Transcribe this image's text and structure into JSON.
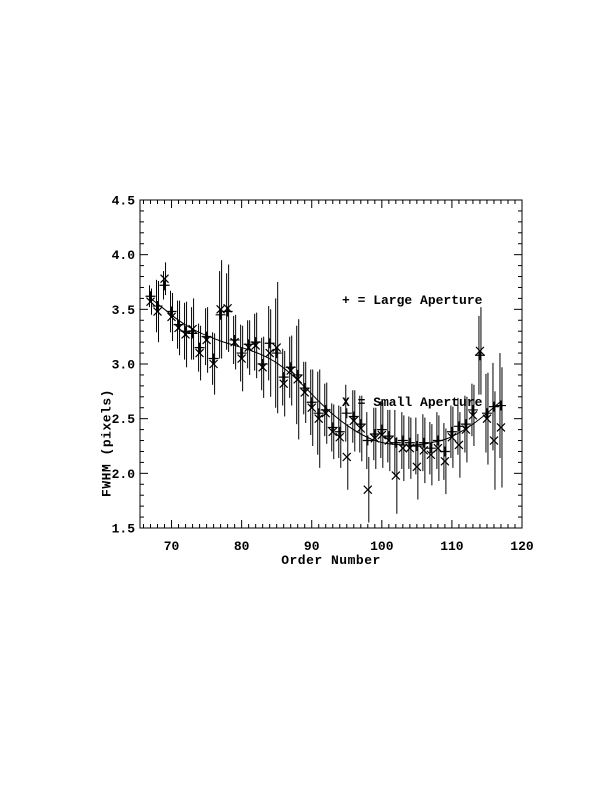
{
  "colors": {
    "ink": "#000000",
    "paper": "#ffffff"
  },
  "chart_data": {
    "type": "scatter",
    "title": "",
    "xlabel": "Order Number",
    "ylabel": "FWHM (pixels)",
    "xlim": [
      65.5,
      120
    ],
    "ylim": [
      1.5,
      4.5
    ],
    "x_major_ticks": [
      70,
      80,
      90,
      100,
      110,
      120
    ],
    "x_minor_step": 1,
    "y_major_ticks": [
      1.5,
      2.0,
      2.5,
      3.0,
      3.5,
      4.0,
      4.5
    ],
    "y_minor_step": 0.1,
    "grid": false,
    "legend_position": "inside-upper-right",
    "legend": [
      "+ = Large Aperture",
      "X = Small Aperture"
    ],
    "orders": [
      67,
      68,
      69,
      70,
      71,
      72,
      73,
      74,
      75,
      76,
      77,
      78,
      79,
      80,
      81,
      82,
      83,
      84,
      85,
      86,
      87,
      88,
      89,
      90,
      91,
      92,
      93,
      94,
      95,
      96,
      97,
      98,
      99,
      100,
      101,
      102,
      103,
      104,
      105,
      106,
      107,
      108,
      109,
      110,
      111,
      112,
      113,
      114,
      115,
      116,
      117
    ],
    "series": [
      {
        "name": "Large Aperture",
        "marker": "plus",
        "values": [
          3.62,
          3.53,
          3.72,
          3.48,
          3.36,
          3.3,
          3.28,
          3.15,
          3.25,
          3.05,
          3.45,
          3.48,
          3.22,
          3.1,
          3.18,
          3.2,
          3.0,
          3.19,
          3.1,
          2.88,
          2.97,
          2.9,
          2.78,
          2.65,
          2.55,
          2.58,
          2.42,
          2.38,
          2.55,
          2.52,
          2.45,
          2.3,
          2.36,
          2.4,
          2.34,
          2.28,
          2.3,
          2.28,
          2.25,
          2.28,
          2.23,
          2.3,
          2.2,
          2.38,
          2.43,
          2.45,
          2.58,
          3.08,
          2.55,
          2.61,
          2.62
        ],
        "errors": [
          0.1,
          0.24,
          0.13,
          0.19,
          0.22,
          0.26,
          0.24,
          0.22,
          0.26,
          0.24,
          0.4,
          0.35,
          0.22,
          0.26,
          0.22,
          0.26,
          0.24,
          0.34,
          0.5,
          0.26,
          0.28,
          0.45,
          0.24,
          0.3,
          0.38,
          0.24,
          0.22,
          0.24,
          0.26,
          0.24,
          0.26,
          0.26,
          0.24,
          0.26,
          0.24,
          0.3,
          0.26,
          0.24,
          0.26,
          0.26,
          0.24,
          0.26,
          0.26,
          0.24,
          0.26,
          0.26,
          0.24,
          0.36,
          0.36,
          0.4,
          0.48
        ]
      },
      {
        "name": "Small Aperture",
        "marker": "x",
        "values": [
          3.57,
          3.48,
          3.78,
          3.43,
          3.33,
          3.27,
          3.32,
          3.1,
          3.22,
          3.0,
          3.5,
          3.51,
          3.2,
          3.05,
          3.15,
          3.17,
          2.97,
          3.1,
          3.15,
          2.82,
          2.94,
          2.86,
          2.74,
          2.6,
          2.5,
          2.55,
          2.38,
          2.33,
          2.15,
          2.48,
          2.41,
          1.85,
          2.32,
          2.35,
          2.3,
          1.98,
          2.23,
          2.23,
          2.06,
          2.21,
          2.17,
          2.23,
          2.11,
          2.33,
          2.26,
          2.4,
          2.53,
          3.12,
          2.5,
          2.3,
          2.42
        ],
        "errors": [
          0.12,
          0.28,
          0.15,
          0.22,
          0.25,
          0.3,
          0.28,
          0.25,
          0.3,
          0.28,
          0.45,
          0.4,
          0.25,
          0.3,
          0.25,
          0.3,
          0.28,
          0.4,
          0.6,
          0.3,
          0.32,
          0.55,
          0.28,
          0.35,
          0.45,
          0.28,
          0.25,
          0.28,
          0.3,
          0.28,
          0.3,
          0.3,
          0.28,
          0.3,
          0.28,
          0.35,
          0.3,
          0.28,
          0.3,
          0.3,
          0.28,
          0.3,
          0.3,
          0.28,
          0.3,
          0.3,
          0.28,
          0.4,
          0.42,
          0.45,
          0.55
        ]
      }
    ],
    "fit_curve": {
      "x": [
        67,
        69,
        71,
        73,
        75,
        77,
        79,
        81,
        83,
        85,
        87,
        89,
        91,
        93,
        95,
        97,
        99,
        101,
        103,
        105,
        107,
        109,
        111,
        113,
        115,
        117
      ],
      "y": [
        3.6,
        3.5,
        3.4,
        3.32,
        3.26,
        3.21,
        3.17,
        3.13,
        3.08,
        3.01,
        2.91,
        2.79,
        2.66,
        2.54,
        2.44,
        2.36,
        2.3,
        2.27,
        2.26,
        2.26,
        2.28,
        2.31,
        2.37,
        2.45,
        2.55,
        2.66
      ]
    }
  }
}
